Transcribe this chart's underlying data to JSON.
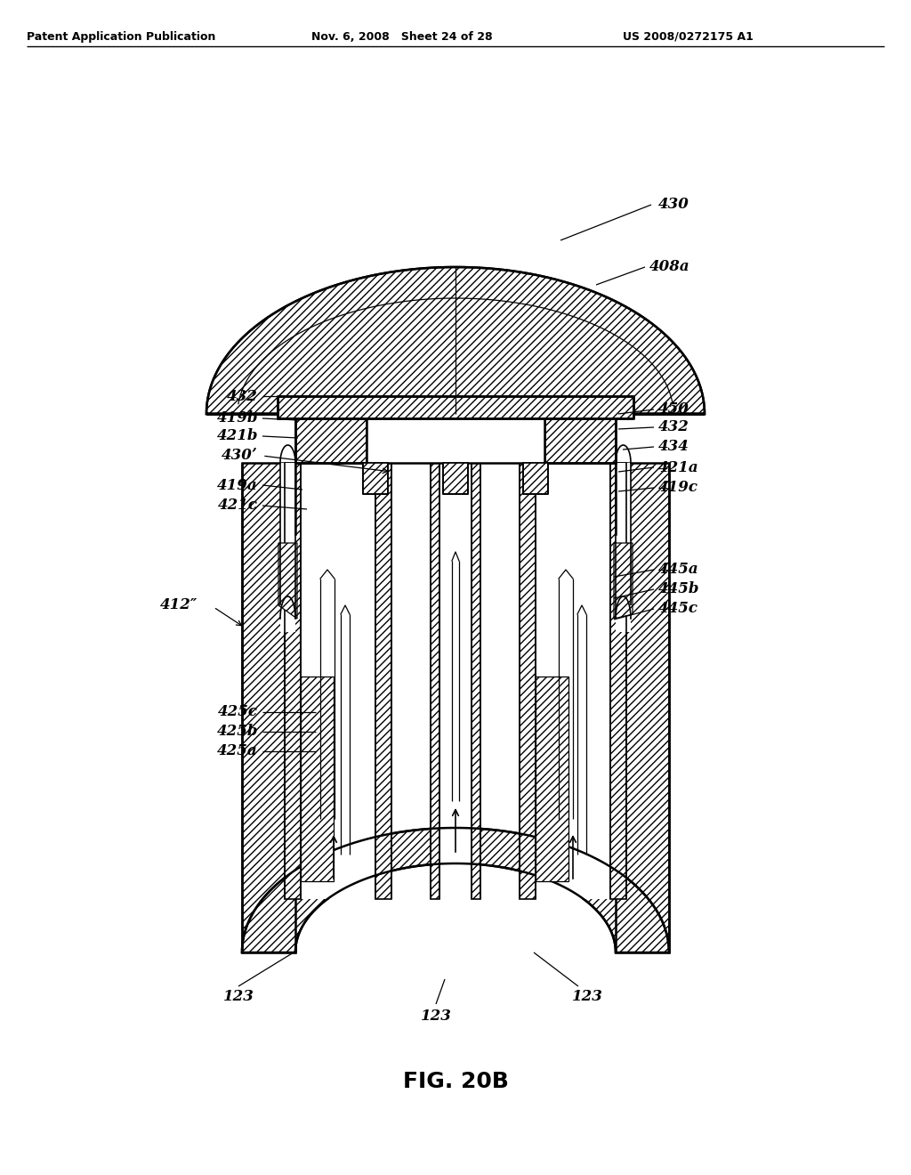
{
  "title": "FIG. 20B",
  "header_left": "Patent Application Publication",
  "header_mid": "Nov. 6, 2008   Sheet 24 of 28",
  "header_right": "US 2008/0272175 A1",
  "background_color": "#ffffff",
  "line_color": "#000000"
}
